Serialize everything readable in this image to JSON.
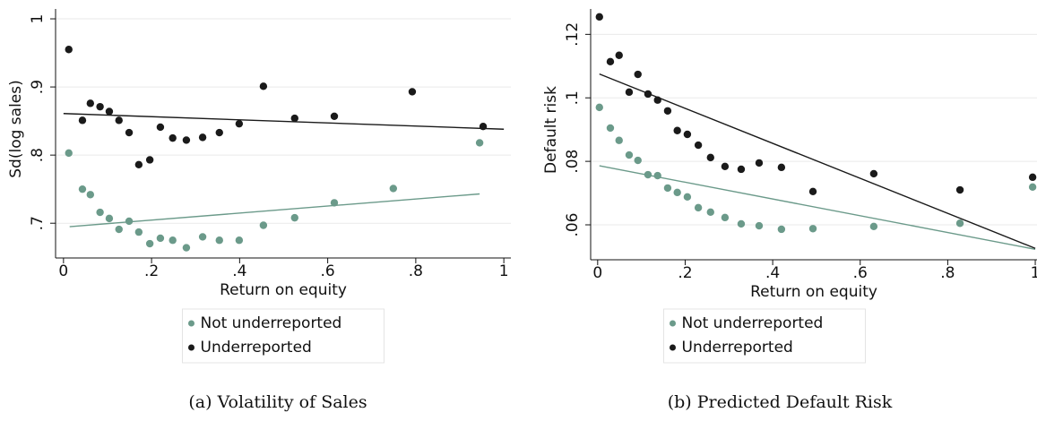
{
  "chart_data": [
    {
      "type": "scatter",
      "caption": "(a) Volatility of Sales",
      "xlabel": "Return on equity",
      "ylabel": "Sd(log sales)",
      "xlim": [
        -0.018,
        1.016
      ],
      "ylim": [
        0.649,
        1.0145
      ],
      "xticks": [
        0,
        {
          "value": 0.2,
          "label": ".2"
        },
        {
          "value": 0.4,
          "label": ".4"
        },
        {
          "value": 0.6,
          "label": ".6"
        },
        {
          "value": 0.8,
          "label": ".8"
        },
        1
      ],
      "yticks": [
        {
          "value": 0.7,
          "label": ".7"
        },
        {
          "value": 0.8,
          "label": ".8"
        },
        {
          "value": 0.9,
          "label": ".9"
        },
        1
      ],
      "grid": true,
      "legend": "bottom",
      "series": [
        {
          "name": "Not underreported",
          "color": "#6b9a8a",
          "x": [
            0.012,
            0.043,
            0.061,
            0.083,
            0.104,
            0.126,
            0.149,
            0.171,
            0.196,
            0.22,
            0.248,
            0.279,
            0.316,
            0.354,
            0.399,
            0.454,
            0.525,
            0.615,
            0.749,
            0.945
          ],
          "values": [
            0.803,
            0.75,
            0.742,
            0.716,
            0.707,
            0.691,
            0.703,
            0.687,
            0.67,
            0.678,
            0.675,
            0.664,
            0.68,
            0.675,
            0.675,
            0.697,
            0.708,
            0.73,
            0.751,
            0.818
          ]
        },
        {
          "name": "Underreported",
          "color": "#1a1a1a",
          "x": [
            0.012,
            0.043,
            0.061,
            0.083,
            0.104,
            0.126,
            0.149,
            0.171,
            0.196,
            0.22,
            0.248,
            0.279,
            0.316,
            0.354,
            0.399,
            0.454,
            0.525,
            0.615,
            0.792,
            0.953
          ],
          "values": [
            0.955,
            0.851,
            0.876,
            0.871,
            0.864,
            0.851,
            0.833,
            0.786,
            0.793,
            0.841,
            0.825,
            0.822,
            0.826,
            0.833,
            0.846,
            0.901,
            0.854,
            0.857,
            0.893,
            0.842
          ]
        }
      ],
      "fit_lines": [
        {
          "color": "#6b9a8a",
          "x": [
            0.014,
            0.945
          ],
          "values": [
            0.695,
            0.743
          ]
        },
        {
          "color": "#1a1a1a",
          "x": [
            0.0,
            1.0
          ],
          "values": [
            0.861,
            0.838
          ]
        }
      ]
    },
    {
      "type": "scatter",
      "caption": "(b) Predicted Default Risk",
      "xlabel": "Return on equity",
      "ylabel": "Default risk",
      "xlim": [
        -0.016,
        1.004
      ],
      "ylim": [
        0.049,
        0.128
      ],
      "xticks": [
        0,
        {
          "value": 0.2,
          "label": ".2"
        },
        {
          "value": 0.4,
          "label": ".4"
        },
        {
          "value": 0.6,
          "label": ".6"
        },
        {
          "value": 0.8,
          "label": ".8"
        },
        1
      ],
      "yticks": [
        {
          "value": 0.06,
          "label": ".06"
        },
        {
          "value": 0.08,
          "label": ".08"
        },
        {
          "value": 0.1,
          "label": ".1"
        },
        {
          "value": 0.12,
          "label": ".12"
        }
      ],
      "grid": true,
      "legend": "bottom",
      "series": [
        {
          "name": "Not underreported",
          "color": "#6b9a8a",
          "x": [
            0.004,
            0.029,
            0.049,
            0.072,
            0.092,
            0.115,
            0.137,
            0.16,
            0.182,
            0.205,
            0.23,
            0.258,
            0.291,
            0.328,
            0.369,
            0.42,
            0.492,
            0.631,
            0.828,
            0.994
          ],
          "values": [
            0.097,
            0.0905,
            0.0866,
            0.082,
            0.0803,
            0.0758,
            0.0755,
            0.0716,
            0.0702,
            0.0688,
            0.0654,
            0.064,
            0.0623,
            0.0603,
            0.0597,
            0.0586,
            0.0588,
            0.0595,
            0.0605,
            0.0719
          ]
        },
        {
          "name": "Underreported",
          "color": "#1a1a1a",
          "x": [
            0.004,
            0.029,
            0.049,
            0.072,
            0.092,
            0.115,
            0.137,
            0.16,
            0.182,
            0.205,
            0.23,
            0.258,
            0.291,
            0.328,
            0.369,
            0.42,
            0.492,
            0.631,
            0.828,
            0.994
          ],
          "values": [
            0.1255,
            0.1114,
            0.1134,
            0.1018,
            0.1074,
            0.1012,
            0.0993,
            0.0959,
            0.0897,
            0.0885,
            0.0851,
            0.0812,
            0.0784,
            0.0775,
            0.0795,
            0.0781,
            0.0705,
            0.0761,
            0.071,
            0.075
          ]
        }
      ],
      "fit_lines": [
        {
          "color": "#6b9a8a",
          "x": [
            0.004,
            1.0
          ],
          "values": [
            0.0786,
            0.0523
          ]
        },
        {
          "color": "#1a1a1a",
          "x": [
            0.004,
            1.0
          ],
          "values": [
            0.1075,
            0.0526
          ]
        }
      ]
    }
  ]
}
